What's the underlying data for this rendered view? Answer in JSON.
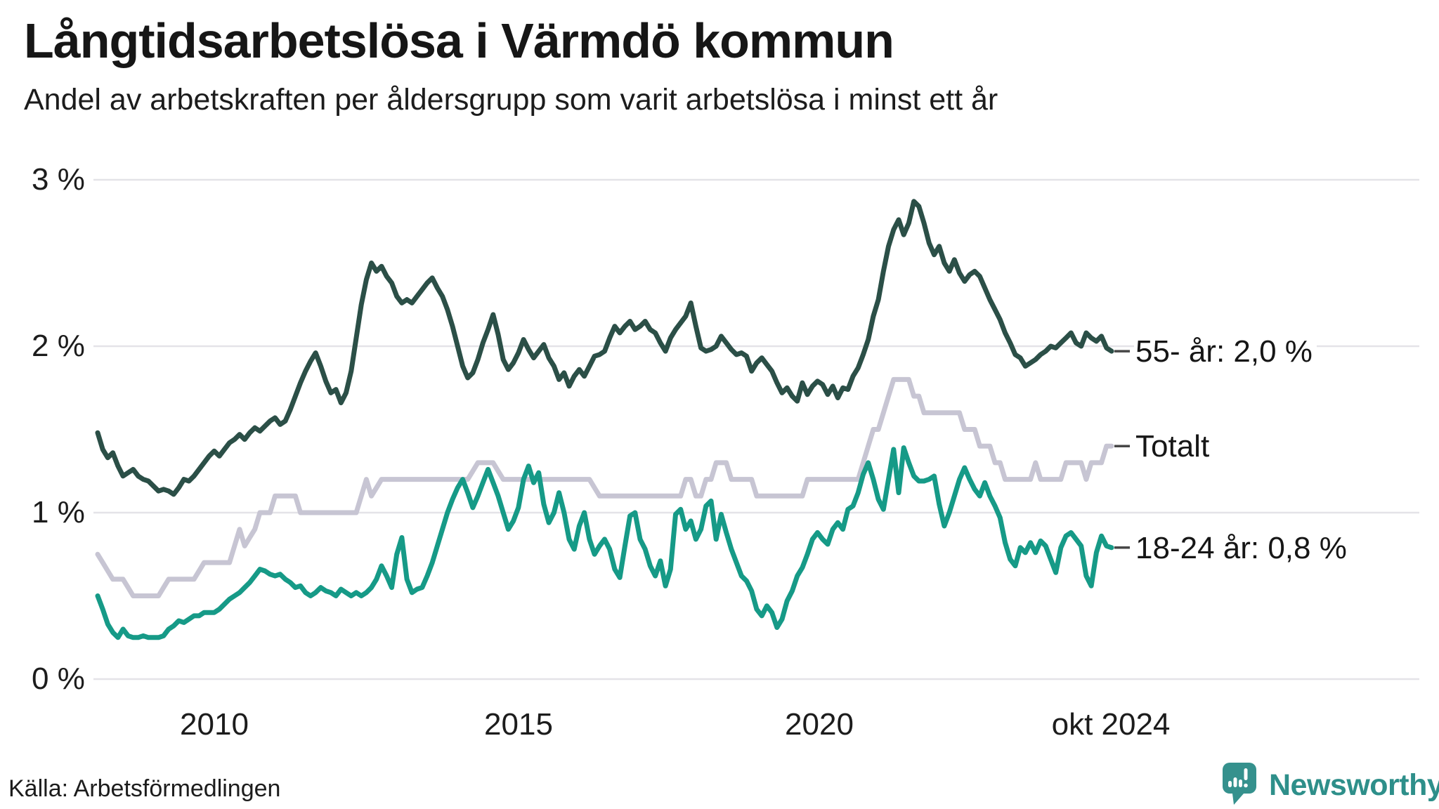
{
  "title": "Långtidsarbetslösa i Värmdö kommun",
  "subtitle": "Andel av arbetskraften per åldersgrupp som varit arbetslösa i minst ett år",
  "source": "Källa: Arbetsförmedlingen",
  "brand": {
    "name": "Newsworthy",
    "color": "#2e8f8a",
    "icon_color": "#35918d"
  },
  "colors": {
    "series_55": "#2b4f47",
    "series_total": "#c7c5d3",
    "series_youth": "#169a87",
    "gridline": "#e4e3e8",
    "tick_dash": "#474747",
    "text": "#1c1c1c"
  },
  "chart_data": {
    "type": "line",
    "title": "Långtidsarbetslösa i Värmdö kommun",
    "subtitle": "Andel av arbetskraften per åldersgrupp som varit arbetslösa i minst ett år",
    "unit": "% av arbetskraften",
    "frequency": "monthly",
    "x_start": "2008-02",
    "x_end": "2024-10",
    "ylim": [
      0,
      3
    ],
    "grid": true,
    "legend_position": "right-end-labels",
    "y_tick_labels": [
      "3 %",
      "2 %",
      "1 %",
      "0 %"
    ],
    "y_tick_values": [
      3,
      2,
      1,
      0
    ],
    "x_tick_labels": [
      "2010",
      "2015",
      "2020",
      "okt 2024"
    ],
    "series": [
      {
        "name": "55- år",
        "end_label": "55- år: 2,0 %",
        "end_value_shown": "2,0 %",
        "color": "#2b4f47",
        "values": [
          1.48,
          1.38,
          1.33,
          1.36,
          1.28,
          1.22,
          1.24,
          1.26,
          1.22,
          1.2,
          1.19,
          1.16,
          1.13,
          1.14,
          1.13,
          1.11,
          1.15,
          1.2,
          1.19,
          1.22,
          1.26,
          1.3,
          1.34,
          1.37,
          1.34,
          1.38,
          1.42,
          1.44,
          1.47,
          1.44,
          1.48,
          1.51,
          1.49,
          1.52,
          1.55,
          1.57,
          1.53,
          1.55,
          1.62,
          1.7,
          1.78,
          1.85,
          1.91,
          1.96,
          1.88,
          1.79,
          1.72,
          1.74,
          1.66,
          1.72,
          1.85,
          2.05,
          2.25,
          2.4,
          2.5,
          2.45,
          2.48,
          2.42,
          2.38,
          2.3,
          2.26,
          2.28,
          2.26,
          2.3,
          2.34,
          2.38,
          2.41,
          2.35,
          2.3,
          2.22,
          2.12,
          2.0,
          1.88,
          1.81,
          1.84,
          1.92,
          2.02,
          2.1,
          2.19,
          2.07,
          1.92,
          1.86,
          1.9,
          1.96,
          2.04,
          1.98,
          1.93,
          1.97,
          2.01,
          1.93,
          1.88,
          1.8,
          1.84,
          1.76,
          1.82,
          1.86,
          1.82,
          1.88,
          1.94,
          1.95,
          1.97,
          2.05,
          2.12,
          2.08,
          2.12,
          2.15,
          2.1,
          2.12,
          2.15,
          2.1,
          2.08,
          2.02,
          1.97,
          2.05,
          2.1,
          2.14,
          2.18,
          2.26,
          2.12,
          1.99,
          1.97,
          1.98,
          2.0,
          2.06,
          2.02,
          1.98,
          1.95,
          1.96,
          1.94,
          1.85,
          1.9,
          1.93,
          1.89,
          1.85,
          1.78,
          1.72,
          1.75,
          1.7,
          1.67,
          1.78,
          1.71,
          1.76,
          1.79,
          1.77,
          1.71,
          1.76,
          1.69,
          1.75,
          1.74,
          1.82,
          1.87,
          1.95,
          2.04,
          2.18,
          2.28,
          2.45,
          2.6,
          2.7,
          2.76,
          2.67,
          2.74,
          2.87,
          2.84,
          2.74,
          2.62,
          2.55,
          2.6,
          2.5,
          2.45,
          2.52,
          2.44,
          2.39,
          2.43,
          2.45,
          2.42,
          2.35,
          2.28,
          2.22,
          2.16,
          2.08,
          2.02,
          1.95,
          1.93,
          1.88,
          1.9,
          1.92,
          1.95,
          1.97,
          2.0,
          1.99,
          2.02,
          2.05,
          2.08,
          2.02,
          2.0,
          2.08,
          2.05,
          2.03,
          2.06,
          1.99,
          1.97
        ]
      },
      {
        "name": "Totalt",
        "end_label": "Totalt",
        "end_value_shown": "",
        "color": "#c7c5d3",
        "values": [
          0.75,
          0.7,
          0.65,
          0.6,
          0.6,
          0.6,
          0.55,
          0.5,
          0.5,
          0.5,
          0.5,
          0.5,
          0.5,
          0.55,
          0.6,
          0.6,
          0.6,
          0.6,
          0.6,
          0.6,
          0.65,
          0.7,
          0.7,
          0.7,
          0.7,
          0.7,
          0.7,
          0.8,
          0.9,
          0.8,
          0.85,
          0.9,
          1.0,
          1.0,
          1.0,
          1.1,
          1.1,
          1.1,
          1.1,
          1.1,
          1.0,
          1.0,
          1.0,
          1.0,
          1.0,
          1.0,
          1.0,
          1.0,
          1.0,
          1.0,
          1.0,
          1.0,
          1.1,
          1.2,
          1.1,
          1.15,
          1.2,
          1.2,
          1.2,
          1.2,
          1.2,
          1.2,
          1.2,
          1.2,
          1.2,
          1.2,
          1.2,
          1.2,
          1.2,
          1.2,
          1.2,
          1.2,
          1.2,
          1.2,
          1.25,
          1.3,
          1.3,
          1.3,
          1.3,
          1.25,
          1.2,
          1.2,
          1.2,
          1.2,
          1.2,
          1.2,
          1.2,
          1.2,
          1.2,
          1.2,
          1.2,
          1.2,
          1.2,
          1.2,
          1.2,
          1.2,
          1.2,
          1.2,
          1.15,
          1.1,
          1.1,
          1.1,
          1.1,
          1.1,
          1.1,
          1.1,
          1.1,
          1.1,
          1.1,
          1.1,
          1.1,
          1.1,
          1.1,
          1.1,
          1.1,
          1.1,
          1.2,
          1.2,
          1.1,
          1.1,
          1.2,
          1.2,
          1.3,
          1.3,
          1.3,
          1.2,
          1.2,
          1.2,
          1.2,
          1.2,
          1.1,
          1.1,
          1.1,
          1.1,
          1.1,
          1.1,
          1.1,
          1.1,
          1.1,
          1.1,
          1.2,
          1.2,
          1.2,
          1.2,
          1.2,
          1.2,
          1.2,
          1.2,
          1.2,
          1.2,
          1.2,
          1.3,
          1.4,
          1.5,
          1.5,
          1.6,
          1.7,
          1.8,
          1.8,
          1.8,
          1.8,
          1.7,
          1.7,
          1.6,
          1.6,
          1.6,
          1.6,
          1.6,
          1.6,
          1.6,
          1.6,
          1.5,
          1.5,
          1.5,
          1.4,
          1.4,
          1.4,
          1.3,
          1.3,
          1.2,
          1.2,
          1.2,
          1.2,
          1.2,
          1.2,
          1.3,
          1.2,
          1.2,
          1.2,
          1.2,
          1.2,
          1.3,
          1.3,
          1.3,
          1.3,
          1.2,
          1.3,
          1.3,
          1.3,
          1.4,
          1.4
        ]
      },
      {
        "name": "18-24 år",
        "end_label": "18-24 år: 0,8 %",
        "end_value_shown": "0,8 %",
        "color": "#169a87",
        "values": [
          0.5,
          0.42,
          0.33,
          0.28,
          0.25,
          0.3,
          0.26,
          0.25,
          0.25,
          0.26,
          0.25,
          0.25,
          0.25,
          0.26,
          0.3,
          0.32,
          0.35,
          0.34,
          0.36,
          0.38,
          0.38,
          0.4,
          0.4,
          0.4,
          0.42,
          0.45,
          0.48,
          0.5,
          0.52,
          0.55,
          0.58,
          0.62,
          0.66,
          0.65,
          0.63,
          0.62,
          0.63,
          0.6,
          0.58,
          0.55,
          0.56,
          0.52,
          0.5,
          0.52,
          0.55,
          0.53,
          0.52,
          0.5,
          0.54,
          0.52,
          0.5,
          0.52,
          0.5,
          0.52,
          0.55,
          0.6,
          0.68,
          0.62,
          0.55,
          0.75,
          0.85,
          0.6,
          0.52,
          0.54,
          0.55,
          0.62,
          0.7,
          0.8,
          0.9,
          1.0,
          1.08,
          1.15,
          1.2,
          1.12,
          1.03,
          1.1,
          1.18,
          1.26,
          1.18,
          1.1,
          1.0,
          0.9,
          0.95,
          1.03,
          1.2,
          1.28,
          1.18,
          1.24,
          1.05,
          0.94,
          1.0,
          1.12,
          1.0,
          0.84,
          0.78,
          0.92,
          1.0,
          0.84,
          0.75,
          0.8,
          0.84,
          0.78,
          0.66,
          0.61,
          0.8,
          0.98,
          1.0,
          0.84,
          0.78,
          0.68,
          0.62,
          0.71,
          0.56,
          0.66,
          0.99,
          1.02,
          0.9,
          0.95,
          0.84,
          0.9,
          1.04,
          1.07,
          0.84,
          0.99,
          0.88,
          0.78,
          0.7,
          0.62,
          0.59,
          0.53,
          0.42,
          0.38,
          0.44,
          0.4,
          0.31,
          0.36,
          0.47,
          0.53,
          0.62,
          0.67,
          0.75,
          0.84,
          0.88,
          0.84,
          0.81,
          0.9,
          0.94,
          0.9,
          1.02,
          1.04,
          1.12,
          1.23,
          1.3,
          1.2,
          1.08,
          1.02,
          1.2,
          1.38,
          1.12,
          1.39,
          1.3,
          1.22,
          1.19,
          1.19,
          1.2,
          1.22,
          1.05,
          0.92,
          1.0,
          1.1,
          1.2,
          1.27,
          1.2,
          1.14,
          1.1,
          1.18,
          1.1,
          1.04,
          0.97,
          0.82,
          0.72,
          0.68,
          0.79,
          0.76,
          0.82,
          0.76,
          0.83,
          0.8,
          0.72,
          0.64,
          0.79,
          0.86,
          0.88,
          0.84,
          0.8,
          0.62,
          0.56,
          0.76,
          0.86,
          0.8,
          0.79
        ]
      }
    ]
  }
}
